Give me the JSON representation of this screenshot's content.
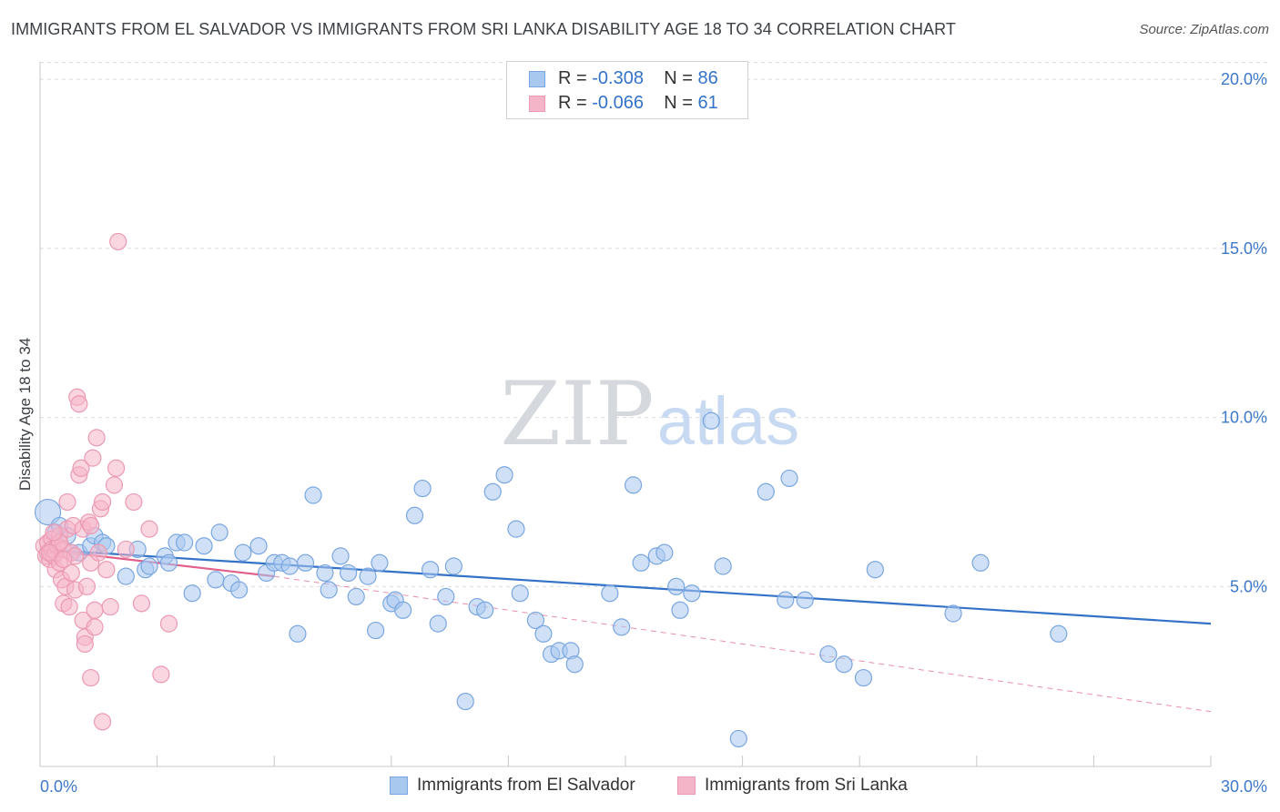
{
  "title": "IMMIGRANTS FROM EL SALVADOR VS IMMIGRANTS FROM SRI LANKA DISABILITY AGE 18 TO 34 CORRELATION CHART",
  "source": "Source: ZipAtlas.com",
  "watermark": {
    "zip": "ZIP",
    "atlas": "atlas"
  },
  "colors": {
    "blue": "#3472c8",
    "blue_fill": "#a9c8f0",
    "blue_stroke": "#7aa6e0",
    "pink": "#e0608a",
    "pink_fill": "#f5b5c8",
    "pink_stroke": "#eb9ab3",
    "grid": "#d9dce0",
    "axis_text_blue": "#3f78c8"
  },
  "legend": {
    "rows": [
      {
        "r_label": "R = ",
        "r_value": "-0.308",
        "n_label": "N = ",
        "n_value": "86"
      },
      {
        "r_label": "R = ",
        "r_value": "-0.066",
        "n_label": "N = ",
        "n_value": "61"
      }
    ]
  },
  "chart_data": {
    "type": "scatter",
    "title": "IMMIGRANTS FROM EL SALVADOR VS IMMIGRANTS FROM SRI LANKA DISABILITY AGE 18 TO 34 CORRELATION CHART",
    "xlabel": "",
    "ylabel": "Disability Age 18 to 34",
    "xlim": [
      0,
      30
    ],
    "ylim": [
      0,
      21
    ],
    "x_tick_labels": [
      "0.0%",
      "30.0%"
    ],
    "y_ticks": [
      5,
      10,
      15,
      20
    ],
    "y_tick_labels": [
      "5.0%",
      "10.0%",
      "15.0%",
      "20.0%"
    ],
    "grid": true,
    "legend_position": "top-center",
    "series": [
      {
        "name": "Immigrants from El Salvador",
        "R": -0.308,
        "N": 86,
        "trend": {
          "x": [
            0,
            30
          ],
          "y": [
            6.1,
            3.9
          ],
          "style": "solid"
        },
        "points": [
          [
            0.2,
            7.2
          ],
          [
            0.4,
            6.6
          ],
          [
            0.7,
            6.5
          ],
          [
            0.5,
            6.8
          ],
          [
            1.0,
            6.0
          ],
          [
            1.3,
            6.2
          ],
          [
            1.4,
            6.5
          ],
          [
            1.6,
            6.3
          ],
          [
            1.7,
            6.2
          ],
          [
            2.2,
            5.3
          ],
          [
            2.5,
            6.1
          ],
          [
            2.7,
            5.5
          ],
          [
            2.8,
            5.6
          ],
          [
            3.2,
            5.9
          ],
          [
            3.3,
            5.7
          ],
          [
            3.5,
            6.3
          ],
          [
            3.7,
            6.3
          ],
          [
            3.9,
            4.8
          ],
          [
            4.2,
            6.2
          ],
          [
            4.5,
            5.2
          ],
          [
            4.6,
            6.6
          ],
          [
            4.9,
            5.1
          ],
          [
            5.1,
            4.9
          ],
          [
            5.2,
            6.0
          ],
          [
            5.6,
            6.2
          ],
          [
            5.8,
            5.4
          ],
          [
            6.0,
            5.7
          ],
          [
            6.2,
            5.7
          ],
          [
            6.4,
            5.6
          ],
          [
            6.6,
            3.6
          ],
          [
            6.8,
            5.7
          ],
          [
            7.0,
            7.7
          ],
          [
            7.3,
            5.4
          ],
          [
            7.4,
            4.9
          ],
          [
            7.7,
            5.9
          ],
          [
            7.9,
            5.4
          ],
          [
            8.1,
            4.7
          ],
          [
            8.4,
            5.3
          ],
          [
            8.6,
            3.7
          ],
          [
            8.7,
            5.7
          ],
          [
            9.0,
            4.5
          ],
          [
            9.1,
            4.6
          ],
          [
            9.3,
            4.3
          ],
          [
            9.6,
            7.1
          ],
          [
            9.8,
            7.9
          ],
          [
            10.0,
            5.5
          ],
          [
            10.2,
            3.9
          ],
          [
            10.4,
            4.7
          ],
          [
            10.6,
            5.6
          ],
          [
            10.9,
            1.6
          ],
          [
            11.2,
            4.4
          ],
          [
            11.4,
            4.3
          ],
          [
            11.6,
            7.8
          ],
          [
            11.9,
            8.3
          ],
          [
            12.2,
            6.7
          ],
          [
            12.3,
            4.8
          ],
          [
            12.7,
            4.0
          ],
          [
            12.9,
            3.6
          ],
          [
            13.1,
            3.0
          ],
          [
            13.3,
            3.1
          ],
          [
            13.6,
            3.1
          ],
          [
            13.7,
            2.7
          ],
          [
            14.6,
            4.8
          ],
          [
            14.9,
            3.8
          ],
          [
            15.2,
            8.0
          ],
          [
            15.4,
            5.7
          ],
          [
            15.8,
            5.9
          ],
          [
            16.0,
            6.0
          ],
          [
            16.3,
            5.0
          ],
          [
            16.4,
            4.3
          ],
          [
            16.7,
            4.8
          ],
          [
            17.2,
            9.9
          ],
          [
            17.5,
            5.6
          ],
          [
            17.9,
            0.5
          ],
          [
            18.6,
            7.8
          ],
          [
            19.1,
            4.6
          ],
          [
            19.2,
            8.2
          ],
          [
            19.6,
            4.6
          ],
          [
            20.2,
            3.0
          ],
          [
            20.6,
            2.7
          ],
          [
            21.1,
            2.3
          ],
          [
            21.4,
            5.5
          ],
          [
            23.4,
            4.2
          ],
          [
            24.1,
            5.7
          ],
          [
            26.1,
            3.6
          ],
          [
            0.8,
            6.0
          ]
        ]
      },
      {
        "name": "Immigrants from Sri Lanka",
        "R": -0.066,
        "N": 61,
        "trend": {
          "x": [
            0,
            6
          ],
          "y": [
            6.1,
            5.3
          ],
          "style": "solid",
          "dash_x": [
            6,
            30
          ],
          "dash_y": [
            5.3,
            1.3
          ]
        },
        "points": [
          [
            0.1,
            6.2
          ],
          [
            0.15,
            5.9
          ],
          [
            0.2,
            6.0
          ],
          [
            0.2,
            6.3
          ],
          [
            0.25,
            5.8
          ],
          [
            0.3,
            6.4
          ],
          [
            0.3,
            6.1
          ],
          [
            0.35,
            5.9
          ],
          [
            0.4,
            6.0
          ],
          [
            0.4,
            5.5
          ],
          [
            0.45,
            6.2
          ],
          [
            0.5,
            5.7
          ],
          [
            0.5,
            6.5
          ],
          [
            0.55,
            5.2
          ],
          [
            0.6,
            6.1
          ],
          [
            0.6,
            4.5
          ],
          [
            0.65,
            5.0
          ],
          [
            0.7,
            6.7
          ],
          [
            0.7,
            7.5
          ],
          [
            0.75,
            4.4
          ],
          [
            0.8,
            6.0
          ],
          [
            0.8,
            5.4
          ],
          [
            0.85,
            6.8
          ],
          [
            0.9,
            5.9
          ],
          [
            0.9,
            4.9
          ],
          [
            0.95,
            10.6
          ],
          [
            1.0,
            8.3
          ],
          [
            1.0,
            10.4
          ],
          [
            1.05,
            8.5
          ],
          [
            1.1,
            4.0
          ],
          [
            1.1,
            6.7
          ],
          [
            1.15,
            3.5
          ],
          [
            1.15,
            3.3
          ],
          [
            1.2,
            5.0
          ],
          [
            1.25,
            6.9
          ],
          [
            1.3,
            6.8
          ],
          [
            1.3,
            5.7
          ],
          [
            1.35,
            8.8
          ],
          [
            1.4,
            3.8
          ],
          [
            1.4,
            4.3
          ],
          [
            1.45,
            9.4
          ],
          [
            1.5,
            6.0
          ],
          [
            1.55,
            7.3
          ],
          [
            1.6,
            7.5
          ],
          [
            1.6,
            1.0
          ],
          [
            1.7,
            5.5
          ],
          [
            1.8,
            4.4
          ],
          [
            1.9,
            8.0
          ],
          [
            1.95,
            8.5
          ],
          [
            2.0,
            15.2
          ],
          [
            2.2,
            6.1
          ],
          [
            2.4,
            7.5
          ],
          [
            2.6,
            4.5
          ],
          [
            2.8,
            6.7
          ],
          [
            3.1,
            2.4
          ],
          [
            3.3,
            3.9
          ],
          [
            1.3,
            2.3
          ],
          [
            0.5,
            6.3
          ],
          [
            0.35,
            6.6
          ],
          [
            0.25,
            6.0
          ],
          [
            0.6,
            5.8
          ]
        ]
      }
    ]
  },
  "bottom_legend": {
    "items": [
      {
        "label": "Immigrants from El Salvador"
      },
      {
        "label": "Immigrants from Sri Lanka"
      }
    ]
  }
}
